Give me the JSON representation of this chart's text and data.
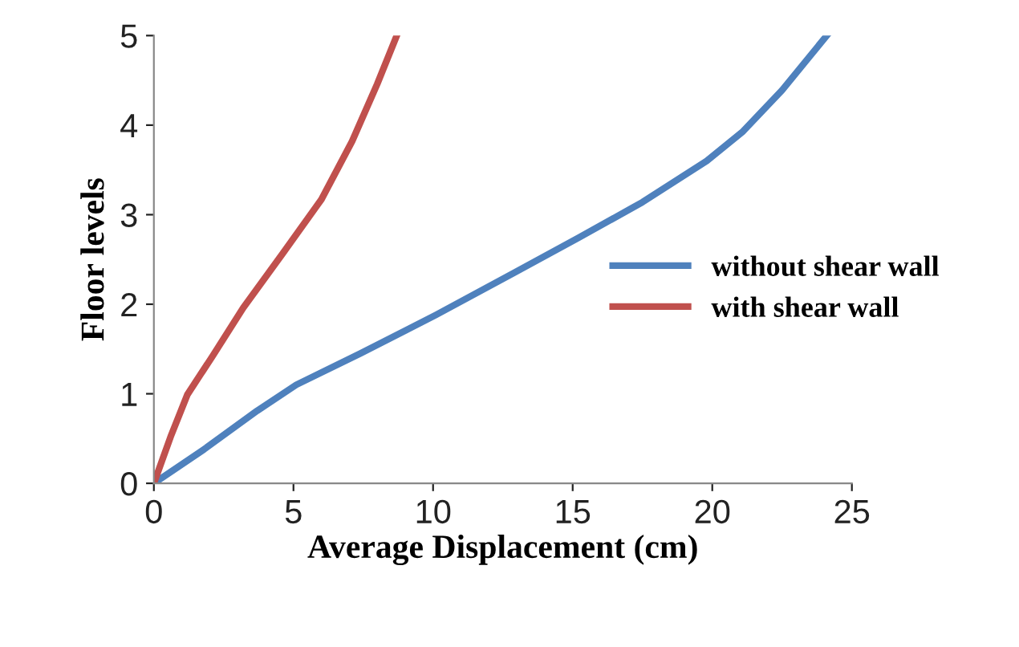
{
  "chart_data": {
    "type": "line",
    "xlabel": "Average Displacement (cm)",
    "ylabel": "Floor levels",
    "series": [
      {
        "name": "without shear wall",
        "color": "#4f81bd",
        "x": [
          0,
          1.8,
          3.7,
          5.1,
          7.4,
          10.1,
          12.9,
          15.2,
          17.5,
          19.8,
          21.1,
          22.5,
          24.1
        ],
        "values": [
          0,
          0.38,
          0.81,
          1.1,
          1.45,
          1.88,
          2.35,
          2.74,
          3.14,
          3.6,
          3.93,
          4.39,
          5
        ]
      },
      {
        "name": "with shear wall",
        "color": "#c0504d",
        "x": [
          0,
          0.6,
          1.2,
          2.1,
          3.2,
          4.6,
          6,
          7.1,
          8,
          8.7
        ],
        "values": [
          0,
          0.52,
          0.99,
          1.42,
          1.96,
          2.56,
          3.17,
          3.82,
          4.46,
          5
        ]
      }
    ],
    "xlim": [
      0,
      25
    ],
    "ylim": [
      0,
      5
    ],
    "xticks": [
      0,
      5,
      10,
      15,
      20,
      25
    ],
    "yticks": [
      0,
      1,
      2,
      3,
      4,
      5
    ],
    "grid": false,
    "legend": "right",
    "marker": "none",
    "line_style": "solid"
  }
}
